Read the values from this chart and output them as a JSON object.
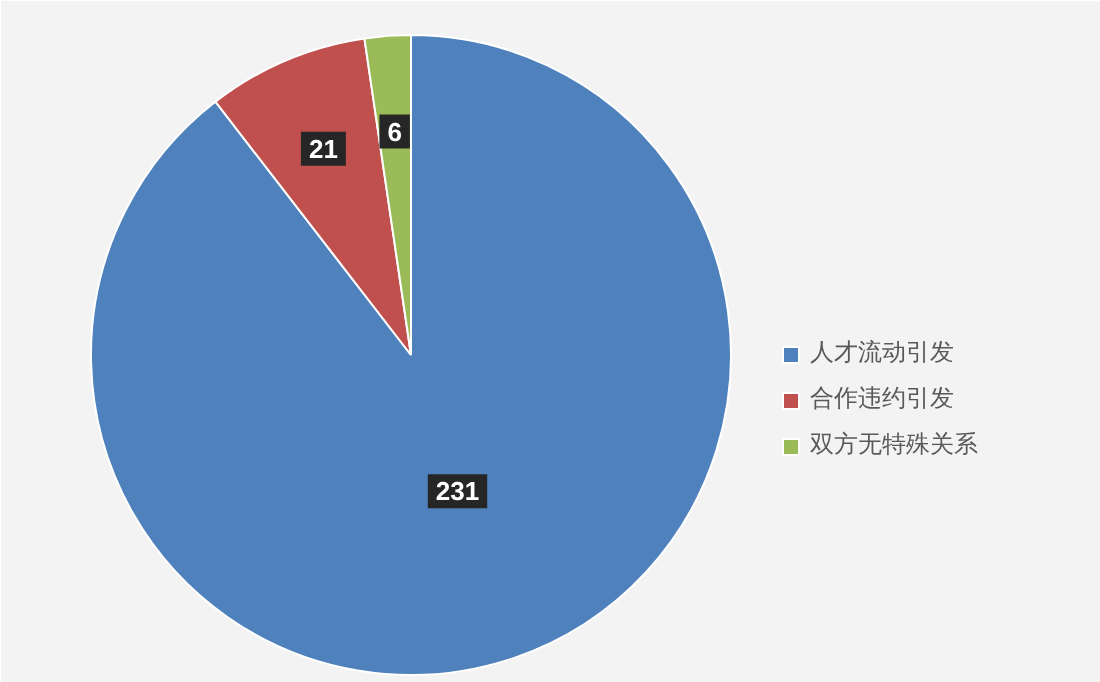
{
  "chart_data": {
    "type": "pie",
    "categories": [
      "人才流动引发",
      "合作违约引发",
      "双方无特殊关系"
    ],
    "values": [
      231,
      21,
      6
    ],
    "colors": [
      "#4f81bd",
      "#c0504d",
      "#9bbb59"
    ],
    "data_labels": true,
    "legend": "right"
  }
}
